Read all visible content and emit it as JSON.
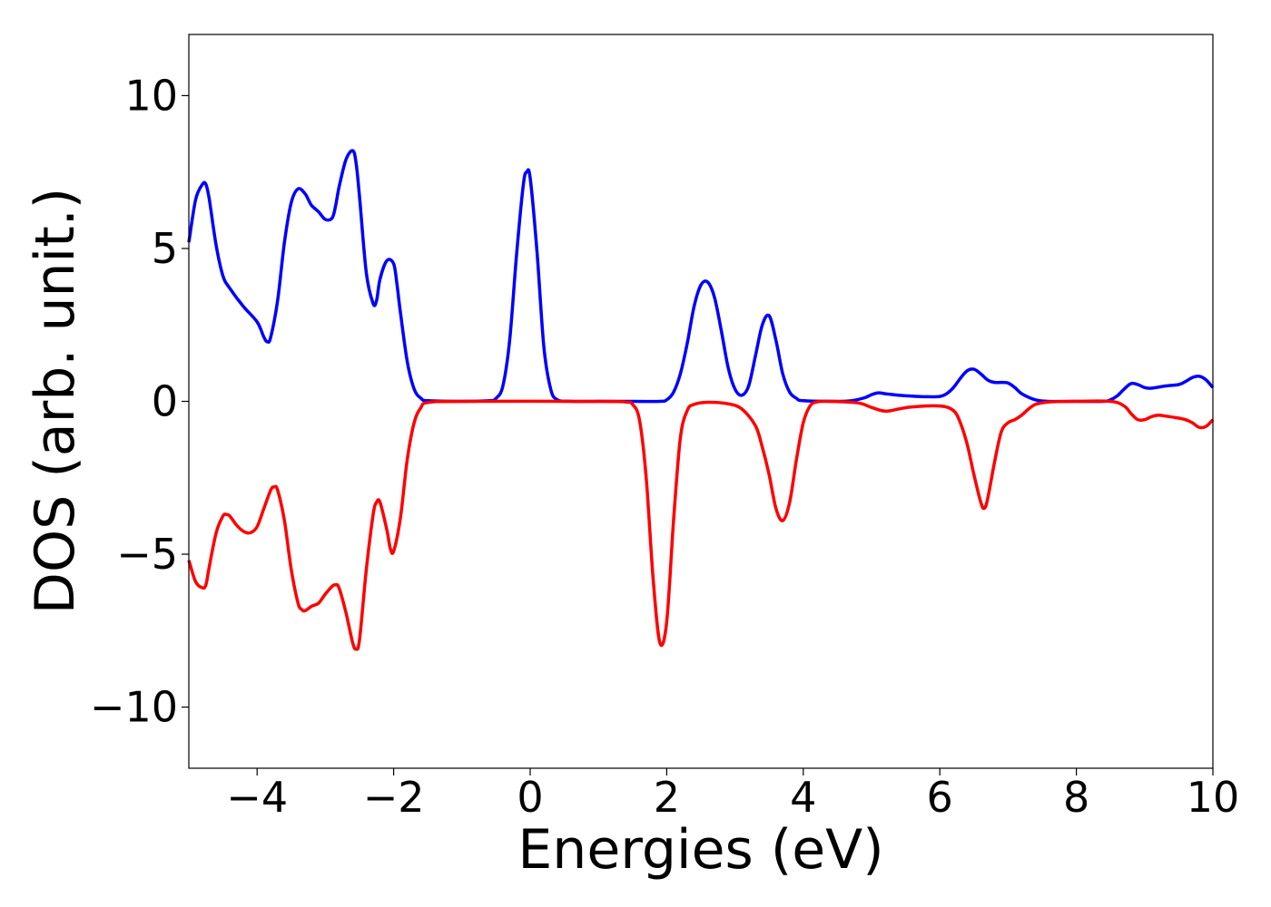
{
  "chart_data": {
    "type": "line",
    "xlabel": "Energies (eV)",
    "ylabel": "DOS (arb. unit.)",
    "xlim": [
      -5,
      10
    ],
    "ylim": [
      -12,
      12
    ],
    "xticks": [
      -4,
      -2,
      0,
      2,
      4,
      6,
      8,
      10
    ],
    "xtick_labels": [
      "−4",
      "−2",
      "0",
      "2",
      "4",
      "6",
      "8",
      "10"
    ],
    "yticks": [
      -10,
      -5,
      0,
      5,
      10
    ],
    "ytick_labels": [
      "−10",
      "−5",
      "0",
      "5",
      "10"
    ],
    "grid": false,
    "legend": "none",
    "series": [
      {
        "color": "#0000ff",
        "x": [
          -5.0,
          -4.9,
          -4.8,
          -4.75,
          -4.7,
          -4.6,
          -4.5,
          -4.4,
          -4.2,
          -4.0,
          -3.9,
          -3.85,
          -3.8,
          -3.7,
          -3.6,
          -3.5,
          -3.4,
          -3.3,
          -3.25,
          -3.2,
          -3.1,
          -3.0,
          -2.9,
          -2.85,
          -2.8,
          -2.7,
          -2.6,
          -2.55,
          -2.5,
          -2.4,
          -2.3,
          -2.25,
          -2.2,
          -2.1,
          -2.0,
          -1.95,
          -1.9,
          -1.8,
          -1.7,
          -1.6,
          -1.5,
          -1.0,
          -0.6,
          -0.5,
          -0.4,
          -0.3,
          -0.2,
          -0.1,
          -0.05,
          0.0,
          0.1,
          0.2,
          0.3,
          0.4,
          0.6,
          1.0,
          1.5,
          1.9,
          2.0,
          2.1,
          2.2,
          2.3,
          2.4,
          2.5,
          2.6,
          2.7,
          2.8,
          2.9,
          3.0,
          3.1,
          3.2,
          3.3,
          3.4,
          3.5,
          3.6,
          3.7,
          3.8,
          3.9,
          4.0,
          4.5,
          4.7,
          4.9,
          5.0,
          5.1,
          5.2,
          5.4,
          5.6,
          5.8,
          6.0,
          6.1,
          6.2,
          6.3,
          6.4,
          6.5,
          6.6,
          6.7,
          6.8,
          6.9,
          7.0,
          7.1,
          7.2,
          7.4,
          7.6,
          8.0,
          8.4,
          8.5,
          8.6,
          8.7,
          8.8,
          8.9,
          9.0,
          9.1,
          9.3,
          9.5,
          9.6,
          9.7,
          9.8,
          9.9,
          10.0
        ],
        "y": [
          5.2,
          6.6,
          7.1,
          7.1,
          6.6,
          5.1,
          4.1,
          3.7,
          3.1,
          2.6,
          2.1,
          1.95,
          2.1,
          3.3,
          5.2,
          6.5,
          6.95,
          6.8,
          6.6,
          6.4,
          6.2,
          5.95,
          6.0,
          6.4,
          7.0,
          7.9,
          8.2,
          7.8,
          6.7,
          4.2,
          3.2,
          3.3,
          4.0,
          4.6,
          4.5,
          3.8,
          2.9,
          1.3,
          0.4,
          0.1,
          0.02,
          0.0,
          0.02,
          0.1,
          0.5,
          2.0,
          4.8,
          7.1,
          7.5,
          7.3,
          4.9,
          1.8,
          0.4,
          0.05,
          0.0,
          0.0,
          0.0,
          0.0,
          0.05,
          0.3,
          0.9,
          1.9,
          3.1,
          3.8,
          3.9,
          3.4,
          2.3,
          1.1,
          0.4,
          0.2,
          0.5,
          1.5,
          2.5,
          2.8,
          2.0,
          0.9,
          0.3,
          0.1,
          0.02,
          0.0,
          0.02,
          0.12,
          0.22,
          0.28,
          0.25,
          0.2,
          0.17,
          0.15,
          0.16,
          0.25,
          0.45,
          0.75,
          1.0,
          1.05,
          0.9,
          0.7,
          0.62,
          0.62,
          0.6,
          0.45,
          0.25,
          0.05,
          0.0,
          0.0,
          0.0,
          0.05,
          0.18,
          0.4,
          0.58,
          0.55,
          0.45,
          0.43,
          0.5,
          0.55,
          0.65,
          0.78,
          0.82,
          0.7,
          0.45
        ]
      },
      {
        "color": "#ff0000",
        "x": [
          -5.0,
          -4.9,
          -4.8,
          -4.75,
          -4.7,
          -4.6,
          -4.5,
          -4.45,
          -4.4,
          -4.3,
          -4.2,
          -4.1,
          -4.0,
          -3.9,
          -3.8,
          -3.75,
          -3.7,
          -3.6,
          -3.5,
          -3.4,
          -3.35,
          -3.3,
          -3.2,
          -3.1,
          -3.0,
          -2.9,
          -2.85,
          -2.8,
          -2.7,
          -2.6,
          -2.55,
          -2.5,
          -2.4,
          -2.3,
          -2.25,
          -2.2,
          -2.1,
          -2.05,
          -2.0,
          -1.9,
          -1.8,
          -1.7,
          -1.6,
          -1.5,
          -1.0,
          1.0,
          1.4,
          1.5,
          1.6,
          1.7,
          1.8,
          1.9,
          2.0,
          2.1,
          2.2,
          2.3,
          2.4,
          2.6,
          2.9,
          3.1,
          3.3,
          3.4,
          3.5,
          3.6,
          3.7,
          3.8,
          3.9,
          4.0,
          4.1,
          4.2,
          4.4,
          4.8,
          5.0,
          5.2,
          5.4,
          5.6,
          6.0,
          6.2,
          6.3,
          6.4,
          6.5,
          6.6,
          6.65,
          6.7,
          6.8,
          6.9,
          7.0,
          7.1,
          7.2,
          7.3,
          7.4,
          7.6,
          8.0,
          8.5,
          8.7,
          8.8,
          8.9,
          9.0,
          9.1,
          9.2,
          9.3,
          9.5,
          9.6,
          9.7,
          9.8,
          9.9,
          10.0
        ],
        "y": [
          -5.2,
          -5.9,
          -6.1,
          -6.0,
          -5.4,
          -4.3,
          -3.75,
          -3.7,
          -3.75,
          -4.05,
          -4.25,
          -4.3,
          -4.1,
          -3.5,
          -2.9,
          -2.8,
          -2.9,
          -3.9,
          -5.5,
          -6.6,
          -6.8,
          -6.85,
          -6.7,
          -6.6,
          -6.3,
          -6.05,
          -6.0,
          -6.1,
          -6.9,
          -7.9,
          -8.1,
          -7.8,
          -5.5,
          -3.7,
          -3.3,
          -3.3,
          -4.2,
          -4.8,
          -4.9,
          -3.8,
          -1.9,
          -0.7,
          -0.2,
          -0.04,
          0.0,
          0.0,
          -0.02,
          -0.1,
          -0.6,
          -2.5,
          -5.8,
          -7.9,
          -7.2,
          -3.9,
          -1.2,
          -0.3,
          -0.1,
          -0.03,
          -0.08,
          -0.25,
          -0.8,
          -1.5,
          -2.4,
          -3.5,
          -3.9,
          -3.3,
          -1.9,
          -0.7,
          -0.15,
          -0.02,
          0.0,
          -0.05,
          -0.2,
          -0.32,
          -0.25,
          -0.18,
          -0.15,
          -0.3,
          -0.7,
          -1.4,
          -2.4,
          -3.3,
          -3.5,
          -3.2,
          -2.0,
          -1.0,
          -0.7,
          -0.6,
          -0.45,
          -0.25,
          -0.1,
          -0.02,
          0.0,
          0.0,
          -0.15,
          -0.4,
          -0.6,
          -0.6,
          -0.5,
          -0.45,
          -0.48,
          -0.55,
          -0.6,
          -0.7,
          -0.85,
          -0.82,
          -0.6
        ]
      }
    ]
  }
}
